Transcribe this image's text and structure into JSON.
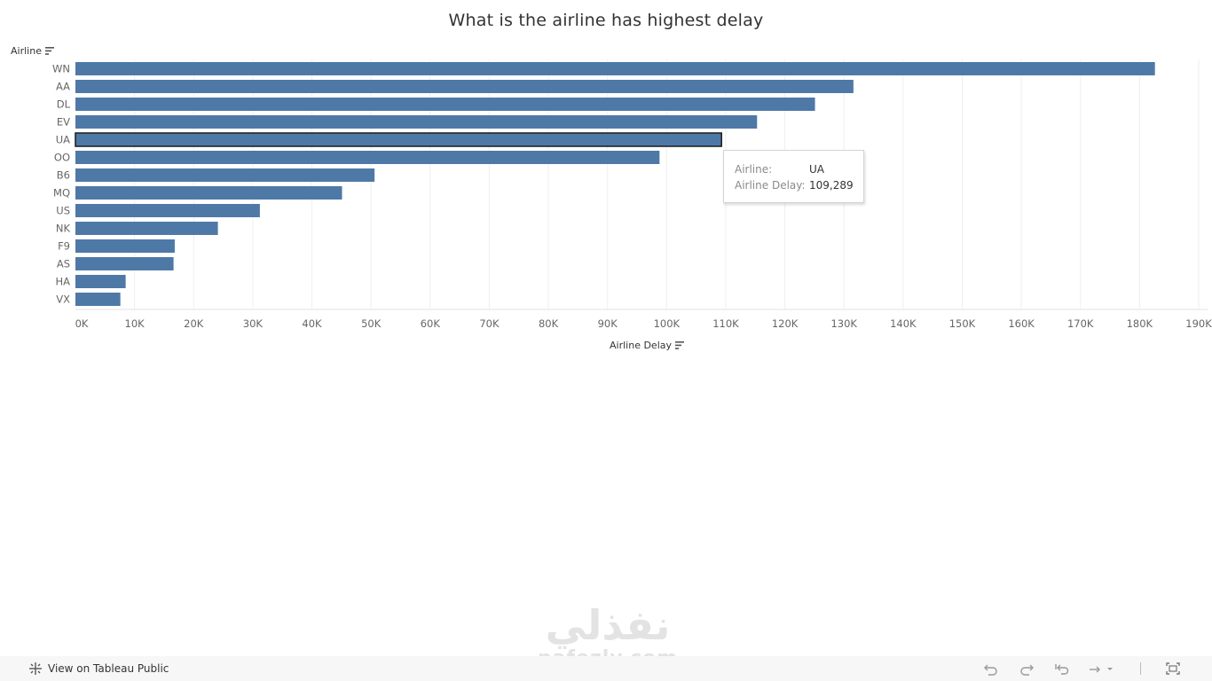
{
  "chart_data": {
    "type": "bar",
    "orientation": "horizontal",
    "title": "What is the airline has highest delay",
    "ylabel": "Airline",
    "xlabel": "Airline Delay",
    "categories": [
      "WN",
      "AA",
      "DL",
      "EV",
      "UA",
      "OO",
      "B6",
      "MQ",
      "US",
      "NK",
      "F9",
      "AS",
      "HA",
      "VX"
    ],
    "values": [
      182600,
      131600,
      125100,
      115300,
      109289,
      98800,
      50600,
      45100,
      31200,
      24100,
      16800,
      16600,
      8500,
      7600
    ],
    "xlim": [
      0,
      190000
    ],
    "xticks": [
      "0K",
      "10K",
      "20K",
      "30K",
      "40K",
      "50K",
      "60K",
      "70K",
      "80K",
      "90K",
      "100K",
      "110K",
      "120K",
      "130K",
      "140K",
      "150K",
      "160K",
      "170K",
      "180K",
      "190K"
    ],
    "bar_color": "#4e79a7",
    "highlighted": "UA",
    "grid": "vertical"
  },
  "tooltip": {
    "airline_label": "Airline:",
    "airline_value": "UA",
    "delay_label": "Airline Delay:",
    "delay_value": "109,289"
  },
  "watermark": {
    "arabic": "نفذلي",
    "latin": "nafezly.com"
  },
  "footer": {
    "view_label": "View on Tableau Public"
  }
}
